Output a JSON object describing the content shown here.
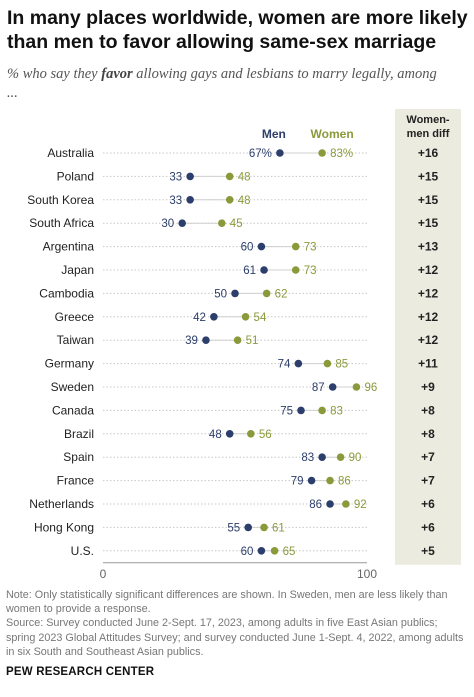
{
  "title": "In many places worldwide, women are more likely than men to favor allowing same-sex marriage",
  "subtitle_before": "% who say they ",
  "subtitle_emphasis": "favor",
  "subtitle_after": " allowing gays and lesbians to marry legally, among ...",
  "notes": [
    "Note: Only statistically significant differences are shown. In Sweden, men are less likely than women to provide a response.",
    "Source: Survey conducted June 2-Sept. 17, 2023, among adults in five East Asian publics; spring 2023 Global Attitudes Survey; and survey conducted June 1-Sept. 4, 2022, among adults in six South and Southeast Asian publics."
  ],
  "source_org": "PEW RESEARCH CENTER",
  "colors": {
    "men": "#2c3e6b",
    "women": "#8a9a3b",
    "diff_bg": "#ecebdf",
    "row_line": "#c8c8c8"
  },
  "chart_data": {
    "type": "scatter",
    "categories": [
      "Australia",
      "Poland",
      "South Korea",
      "South Africa",
      "Argentina",
      "Japan",
      "Cambodia",
      "Greece",
      "Taiwan",
      "Germany",
      "Sweden",
      "Canada",
      "Brazil",
      "Spain",
      "France",
      "Netherlands",
      "Hong Kong",
      "U.S."
    ],
    "series": [
      {
        "name": "Men",
        "values": [
          67,
          33,
          33,
          30,
          60,
          61,
          50,
          42,
          39,
          74,
          87,
          75,
          48,
          83,
          79,
          86,
          55,
          60
        ]
      },
      {
        "name": "Women",
        "values": [
          83,
          48,
          48,
          45,
          73,
          73,
          62,
          54,
          51,
          85,
          96,
          83,
          56,
          90,
          86,
          92,
          61,
          65
        ]
      }
    ],
    "diff_header": "Women-men diff",
    "diffs": [
      "+16",
      "+15",
      "+15",
      "+15",
      "+13",
      "+12",
      "+12",
      "+12",
      "+12",
      "+11",
      "+9",
      "+8",
      "+8",
      "+7",
      "+7",
      "+6",
      "+6",
      "+5"
    ],
    "first_value_suffix": "%",
    "xlim": [
      0,
      100
    ],
    "xticks": [
      "0",
      "100"
    ]
  }
}
